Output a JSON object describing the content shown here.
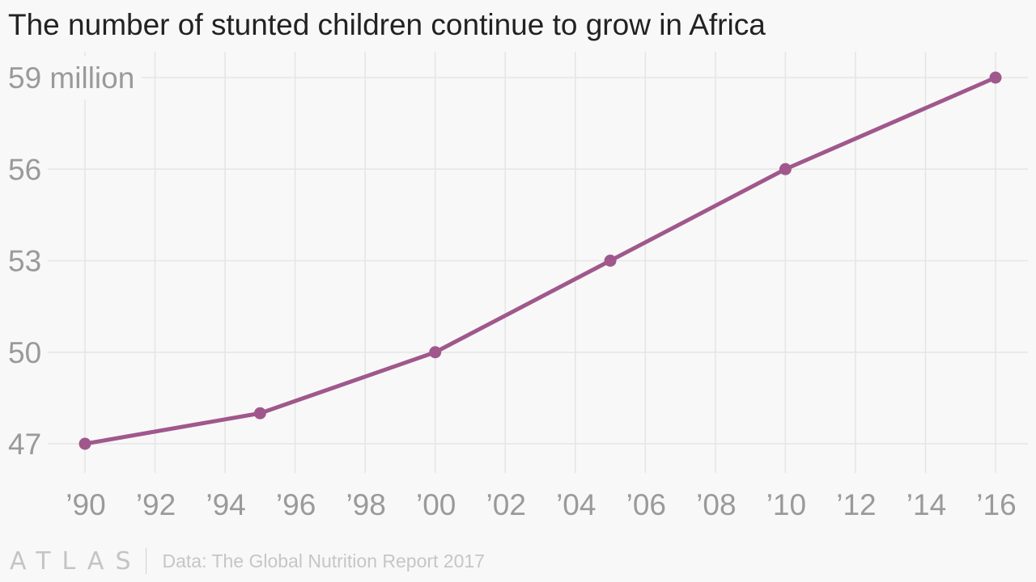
{
  "title": "The number of stunted children continue to grow in Africa",
  "footer": {
    "logo": "ATLAS",
    "source": "Data: The Global Nutrition Report 2017"
  },
  "colors": {
    "line": "#a0588c",
    "grid": "#e5e5e5",
    "tick": "#9a9a9a",
    "background": "#f8f8f8"
  },
  "chart_data": {
    "type": "line",
    "title": "The number of stunted children continue to grow in Africa",
    "xlabel": "",
    "ylabel": "",
    "x": [
      1990,
      1995,
      2000,
      2005,
      2010,
      2016
    ],
    "series": [
      {
        "values": [
          47,
          48,
          50,
          53,
          56,
          59
        ]
      }
    ],
    "xlim": [
      1990,
      2016
    ],
    "ylim": [
      47,
      59
    ],
    "xticks": [
      1990,
      1992,
      1994,
      1996,
      1998,
      2000,
      2002,
      2004,
      2006,
      2008,
      2010,
      2012,
      2014,
      2016
    ],
    "xtick_labels": [
      "’90",
      "’92",
      "’94",
      "’96",
      "’98",
      "’00",
      "’02",
      "’04",
      "’06",
      "’08",
      "’10",
      "’12",
      "’14",
      "’16"
    ],
    "yticks": [
      47,
      50,
      53,
      56,
      59
    ],
    "ytick_labels": [
      "47",
      "50",
      "53",
      "56",
      "59 million"
    ],
    "grid": true,
    "markers": true
  }
}
